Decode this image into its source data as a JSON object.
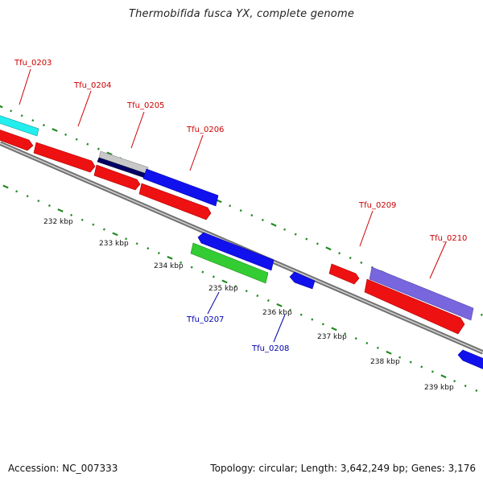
{
  "title": "Thermobifida fusca YX, complete genome",
  "footer": {
    "accession": "Accession: NC_007333",
    "summary": "Topology: circular; Length: 3,642,249 bp; Genes: 3,176"
  },
  "kbp_labels": [
    "232 kbp",
    "233 kbp",
    "234 kbp",
    "235 kbp",
    "236 kbp",
    "237 kbp",
    "238 kbp",
    "239 kbp"
  ],
  "gene_labels": {
    "tfu_0203": "Tfu_0203",
    "tfu_0204": "Tfu_0204",
    "tfu_0205": "Tfu_0205",
    "tfu_0206": "Tfu_0206",
    "tfu_0207": "Tfu_0207",
    "tfu_0208": "Tfu_0208",
    "tfu_0209": "Tfu_0209",
    "tfu_0210": "Tfu_0210"
  },
  "colors": {
    "forward_label": "#cc0000",
    "reverse_label": "#0000aa",
    "tick": "#228b22",
    "backbone": "#888888",
    "red": "#ee1111",
    "blue": "#1111ee",
    "cyan": "#22eeee",
    "green": "#33cc33",
    "purple": "#7766dd",
    "navy": "#000066",
    "silver": "#bbbbbb"
  }
}
